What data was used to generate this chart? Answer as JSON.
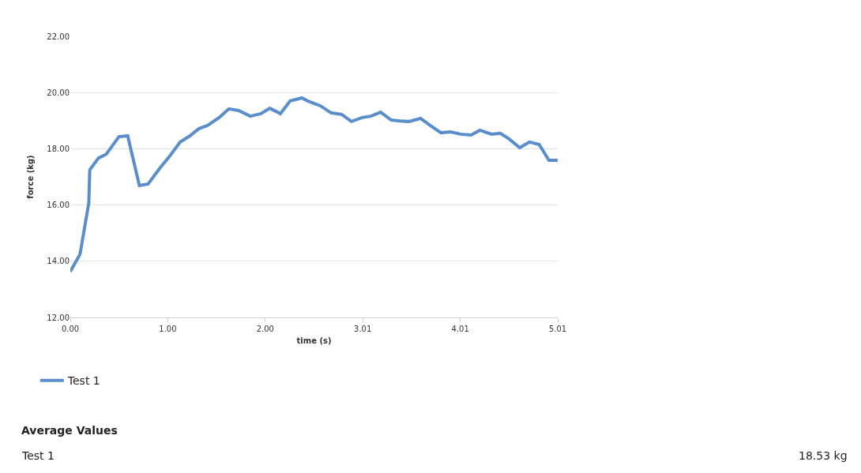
{
  "chart_data": {
    "type": "line",
    "xlabel": "time (s)",
    "ylabel": "force (kg)",
    "x": [
      0,
      0.1,
      0.19,
      0.2,
      0.29,
      0.37,
      0.5,
      0.59,
      0.71,
      0.8,
      0.92,
      1.02,
      1.13,
      1.23,
      1.32,
      1.41,
      1.53,
      1.63,
      1.73,
      1.85,
      1.96,
      2.05,
      2.16,
      2.26,
      2.38,
      2.44,
      2.57,
      2.68,
      2.79,
      2.89,
      3.0,
      3.09,
      3.19,
      3.3,
      3.39,
      3.48,
      3.6,
      3.7,
      3.81,
      3.91,
      4.01,
      4.12,
      4.21,
      4.33,
      4.42,
      4.51,
      4.62,
      4.72,
      4.82,
      4.92,
      5.01
    ],
    "series": [
      {
        "name": "Test 1",
        "color": "#5a8ecb",
        "values": [
          13.63,
          14.25,
          16.07,
          17.25,
          17.67,
          17.81,
          18.43,
          18.46,
          16.69,
          16.75,
          17.31,
          17.73,
          18.24,
          18.46,
          18.71,
          18.83,
          19.11,
          19.42,
          19.36,
          19.16,
          19.25,
          19.44,
          19.25,
          19.7,
          19.81,
          19.7,
          19.53,
          19.28,
          19.22,
          18.97,
          19.11,
          19.16,
          19.3,
          19.02,
          18.99,
          18.97,
          19.08,
          18.83,
          18.57,
          18.6,
          18.52,
          18.49,
          18.66,
          18.52,
          18.55,
          18.35,
          18.04,
          18.24,
          18.15,
          17.59,
          17.59
        ]
      }
    ],
    "xlim": [
      0,
      5.01
    ],
    "ylim": [
      12,
      22
    ],
    "xticks": [
      {
        "value": 0,
        "label": "0.00"
      },
      {
        "value": 1.002,
        "label": "1.00"
      },
      {
        "value": 2.004,
        "label": "2.00"
      },
      {
        "value": 3.006,
        "label": "3.01"
      },
      {
        "value": 4.008,
        "label": "4.01"
      },
      {
        "value": 5.01,
        "label": "5.01"
      }
    ],
    "yticks": [
      {
        "value": 12,
        "label": "12.00"
      },
      {
        "value": 14,
        "label": "14.00"
      },
      {
        "value": 16,
        "label": "16.00"
      },
      {
        "value": 18,
        "label": "18.00"
      },
      {
        "value": 20,
        "label": "20.00"
      },
      {
        "value": 22,
        "label": "22.00"
      }
    ],
    "grid": "y",
    "legend": "bottom left",
    "marker": "none",
    "line_style": "solid",
    "annotations": [
      "Average Values",
      "Test 1",
      "18.53 kg"
    ]
  }
}
